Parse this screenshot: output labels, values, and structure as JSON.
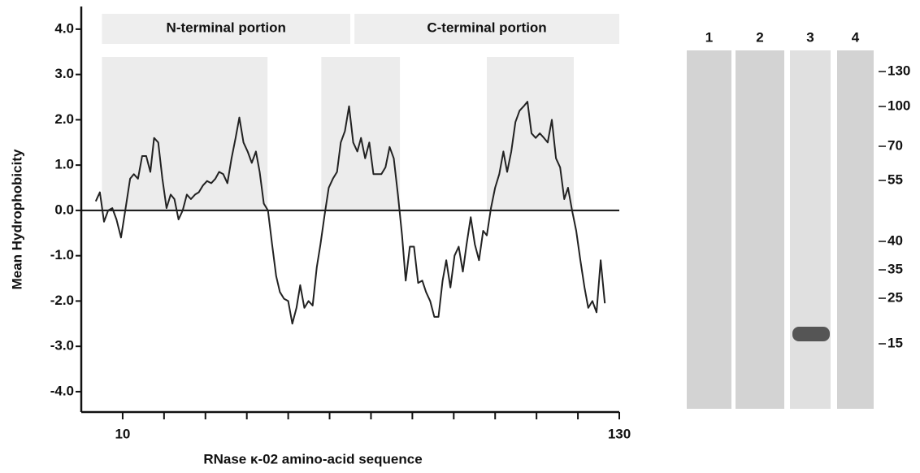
{
  "chart_data": {
    "type": "line",
    "xlabel": "RNase κ-02 amino-acid sequence",
    "ylabel": "Mean Hydrophobicity",
    "xlim": [
      0,
      130
    ],
    "xticks": [
      10,
      130
    ],
    "xminorticks": [
      20,
      30,
      40,
      50,
      60,
      70,
      80,
      90,
      100,
      110,
      120
    ],
    "ylim": [
      -4.45,
      4.5
    ],
    "yticks": [
      {
        "value": 4,
        "label": "4.0"
      },
      {
        "value": 3,
        "label": "3.0"
      },
      {
        "value": 2,
        "label": "2.0"
      },
      {
        "value": 1,
        "label": "1.0"
      },
      {
        "value": 0,
        "label": "0.0"
      },
      {
        "value": -1,
        "label": "-1.0"
      },
      {
        "value": -2,
        "label": "-2.0"
      },
      {
        "value": -3,
        "label": "-3.0"
      },
      {
        "value": -4,
        "label": "-4.0"
      }
    ],
    "zero_line": true,
    "portions": [
      {
        "label": "N-terminal portion",
        "x": [
          5,
          65
        ]
      },
      {
        "label": "C-terminal portion",
        "x": [
          66,
          130
        ]
      }
    ],
    "regions": [
      [
        5,
        45
      ],
      [
        58,
        77
      ],
      [
        98,
        119
      ]
    ],
    "color": "#222222",
    "x": [
      3.5,
      4.5,
      5.5,
      6.5,
      7.5,
      8.5,
      9.6,
      10.8,
      11.8,
      12.7,
      13.7,
      14.7,
      15.7,
      16.7,
      17.6,
      18.6,
      19.6,
      20.6,
      21.6,
      22.5,
      23.5,
      24.5,
      25.5,
      26.5,
      27.5,
      28.4,
      29.4,
      30.4,
      31.4,
      32.4,
      33.3,
      34.3,
      35.3,
      36.3,
      37.3,
      38.2,
      39.2,
      40.2,
      41.2,
      42.2,
      43.1,
      44.1,
      45.1,
      46.1,
      47.1,
      48.0,
      49.0,
      50.0,
      51.0,
      52.0,
      52.9,
      53.9,
      54.9,
      55.9,
      56.9,
      57.8,
      58.8,
      59.8,
      60.8,
      61.8,
      62.7,
      63.7,
      64.7,
      65.7,
      66.7,
      67.6,
      68.6,
      69.6,
      70.6,
      71.6,
      72.5,
      73.5,
      74.5,
      75.5,
      76.5,
      77.5,
      78.4,
      79.4,
      80.4,
      81.4,
      82.4,
      83.3,
      84.3,
      85.3,
      86.3,
      87.3,
      88.2,
      89.2,
      90.2,
      91.2,
      92.2,
      93.1,
      94.1,
      95.1,
      96.1,
      97.1,
      98.0,
      99.0,
      100.0,
      101.0,
      102.0,
      102.9,
      103.9,
      104.9,
      105.9,
      106.9,
      107.8,
      108.8,
      109.8,
      110.8,
      111.8,
      112.7,
      113.7,
      114.7,
      115.7,
      116.7,
      117.6,
      118.6,
      119.6,
      120.6,
      121.6,
      122.5,
      123.5,
      124.5,
      125.5,
      126.5
    ],
    "values": [
      0.2,
      0.4,
      -0.25,
      0.0,
      0.05,
      -0.2,
      -0.6,
      0.1,
      0.7,
      0.8,
      0.7,
      1.2,
      1.2,
      0.85,
      1.6,
      1.5,
      0.7,
      0.05,
      0.35,
      0.25,
      -0.2,
      0.0,
      0.35,
      0.25,
      0.35,
      0.4,
      0.55,
      0.65,
      0.6,
      0.7,
      0.85,
      0.8,
      0.6,
      1.15,
      1.6,
      2.05,
      1.5,
      1.3,
      1.05,
      1.3,
      0.85,
      0.15,
      0.0,
      -0.75,
      -1.45,
      -1.8,
      -1.95,
      -2.0,
      -2.5,
      -2.15,
      -1.65,
      -2.15,
      -2.0,
      -2.1,
      -1.25,
      -0.75,
      -0.1,
      0.5,
      0.7,
      0.85,
      1.5,
      1.75,
      2.3,
      1.5,
      1.3,
      1.6,
      1.15,
      1.5,
      0.8,
      0.8,
      0.8,
      0.95,
      1.4,
      1.15,
      0.35,
      -0.55,
      -1.55,
      -0.8,
      -0.8,
      -1.6,
      -1.55,
      -1.8,
      -2.0,
      -2.35,
      -2.35,
      -1.55,
      -1.1,
      -1.7,
      -1.0,
      -0.8,
      -1.35,
      -0.75,
      -0.15,
      -0.75,
      -1.1,
      -0.45,
      -0.55,
      0.05,
      0.5,
      0.8,
      1.3,
      0.85,
      1.3,
      1.95,
      2.2,
      2.3,
      2.4,
      1.7,
      1.6,
      1.7,
      1.6,
      1.5,
      2.0,
      1.15,
      0.95,
      0.25,
      0.5,
      0.0,
      -0.45,
      -1.1,
      -1.7,
      -2.15,
      -2.0,
      -2.25,
      -1.1,
      -2.05
    ]
  },
  "gel": {
    "lanes": [
      "1",
      "2",
      "3",
      "4"
    ],
    "markers": [
      130,
      100,
      70,
      55,
      40,
      35,
      25,
      15
    ]
  }
}
